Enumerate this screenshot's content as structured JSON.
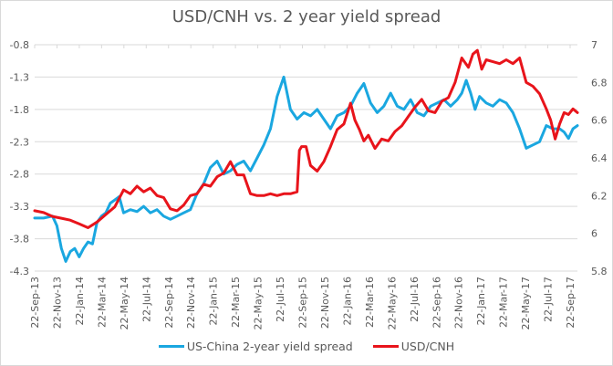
{
  "chart_data": {
    "type": "line",
    "title": "USD/CNH vs. 2 year yield spread",
    "xlabel": "",
    "ylabel": "",
    "y2label": "",
    "grid": true,
    "legend_position": "bottom",
    "x_ticks": [
      "22-Sep-13",
      "22-Nov-13",
      "22-Jan-14",
      "22-Mar-14",
      "22-May-14",
      "22-Jul-14",
      "22-Sep-14",
      "22-Nov-14",
      "22-Jan-15",
      "22-Mar-15",
      "22-May-15",
      "22-Jul-15",
      "22-Sep-15",
      "22-Nov-15",
      "22-Jan-16",
      "22-Mar-16",
      "22-May-16",
      "22-Jul-16",
      "22-Sep-16",
      "22-Nov-16",
      "22-Jan-17",
      "22-Mar-17",
      "22-May-17",
      "22-Jul-17",
      "22-Sep-17"
    ],
    "y_left": {
      "ticks": [
        "-0.8",
        "-1.3",
        "-1.8",
        "-2.3",
        "-2.8",
        "-3.3",
        "-3.8",
        "-4.3"
      ],
      "range": [
        -4.3,
        -0.8
      ]
    },
    "y_right": {
      "ticks": [
        "7",
        "6.8",
        "6.6",
        "6.4",
        "6.2",
        "6",
        "5.8"
      ],
      "range": [
        5.8,
        7.0
      ]
    },
    "x_range_months": [
      0,
      24.4
    ],
    "series": [
      {
        "name": "US-China 2-year yield spread",
        "axis": "left",
        "color": "#1AA7E0",
        "x_months": [
          0,
          0.4,
          0.8,
          1.0,
          1.2,
          1.4,
          1.6,
          1.8,
          2.0,
          2.2,
          2.4,
          2.6,
          2.8,
          3.0,
          3.2,
          3.4,
          3.6,
          3.8,
          4.0,
          4.3,
          4.6,
          4.9,
          5.2,
          5.5,
          5.8,
          6.1,
          6.4,
          6.7,
          7.0,
          7.3,
          7.6,
          7.9,
          8.2,
          8.5,
          8.8,
          9.1,
          9.4,
          9.7,
          10.0,
          10.3,
          10.6,
          10.9,
          11.2,
          11.5,
          11.8,
          12.1,
          12.4,
          12.7,
          13.0,
          13.3,
          13.6,
          13.9,
          14.2,
          14.5,
          14.8,
          15.1,
          15.4,
          15.7,
          16.0,
          16.3,
          16.6,
          16.9,
          17.2,
          17.5,
          17.8,
          18.1,
          18.4,
          18.7,
          19.0,
          19.2,
          19.4,
          19.6,
          19.8,
          20.0,
          20.3,
          20.6,
          20.9,
          21.2,
          21.5,
          21.8,
          22.1,
          22.4,
          22.7,
          23.0,
          23.3,
          23.6,
          23.8,
          24.0,
          24.2,
          24.4
        ],
        "values": [
          -3.48,
          -3.48,
          -3.45,
          -3.6,
          -3.95,
          -4.15,
          -4.0,
          -3.95,
          -4.08,
          -3.95,
          -3.85,
          -3.88,
          -3.55,
          -3.45,
          -3.4,
          -3.25,
          -3.2,
          -3.15,
          -3.4,
          -3.35,
          -3.38,
          -3.3,
          -3.4,
          -3.35,
          -3.45,
          -3.5,
          -3.45,
          -3.4,
          -3.35,
          -3.1,
          -2.95,
          -2.7,
          -2.6,
          -2.8,
          -2.75,
          -2.65,
          -2.6,
          -2.75,
          -2.55,
          -2.35,
          -2.1,
          -1.6,
          -1.3,
          -1.8,
          -1.95,
          -1.85,
          -1.9,
          -1.8,
          -1.95,
          -2.1,
          -1.9,
          -1.85,
          -1.75,
          -1.55,
          -1.4,
          -1.7,
          -1.85,
          -1.75,
          -1.55,
          -1.75,
          -1.8,
          -1.65,
          -1.85,
          -1.9,
          -1.75,
          -1.7,
          -1.65,
          -1.75,
          -1.65,
          -1.55,
          -1.35,
          -1.55,
          -1.8,
          -1.6,
          -1.7,
          -1.75,
          -1.65,
          -1.7,
          -1.85,
          -2.1,
          -2.4,
          -2.35,
          -2.3,
          -2.05,
          -2.1,
          -2.1,
          -2.15,
          -2.25,
          -2.1,
          -2.05
        ]
      },
      {
        "name": "USD/CNH",
        "axis": "right",
        "color": "#E8141B",
        "x_months": [
          0,
          0.4,
          0.8,
          1.2,
          1.6,
          2.0,
          2.4,
          2.8,
          3.2,
          3.6,
          4.0,
          4.3,
          4.6,
          4.9,
          5.2,
          5.5,
          5.8,
          6.1,
          6.4,
          6.7,
          7.0,
          7.3,
          7.6,
          7.9,
          8.2,
          8.5,
          8.8,
          9.1,
          9.4,
          9.7,
          10.0,
          10.3,
          10.6,
          10.9,
          11.2,
          11.5,
          11.8,
          11.9,
          12.0,
          12.2,
          12.4,
          12.7,
          13.0,
          13.3,
          13.6,
          13.9,
          14.2,
          14.4,
          14.6,
          14.8,
          15.0,
          15.3,
          15.6,
          15.9,
          16.2,
          16.5,
          16.8,
          17.1,
          17.4,
          17.7,
          18.0,
          18.3,
          18.6,
          18.9,
          19.2,
          19.5,
          19.7,
          19.9,
          20.1,
          20.3,
          20.6,
          20.9,
          21.2,
          21.5,
          21.8,
          22.1,
          22.4,
          22.7,
          23.0,
          23.2,
          23.4,
          23.6,
          23.8,
          24.0,
          24.2,
          24.4
        ],
        "values": [
          6.12,
          6.11,
          6.09,
          6.08,
          6.07,
          6.05,
          6.03,
          6.06,
          6.1,
          6.14,
          6.23,
          6.21,
          6.25,
          6.22,
          6.24,
          6.2,
          6.19,
          6.13,
          6.12,
          6.15,
          6.2,
          6.21,
          6.26,
          6.25,
          6.3,
          6.32,
          6.38,
          6.31,
          6.31,
          6.21,
          6.2,
          6.2,
          6.21,
          6.2,
          6.21,
          6.21,
          6.22,
          6.44,
          6.46,
          6.46,
          6.36,
          6.33,
          6.38,
          6.46,
          6.55,
          6.58,
          6.69,
          6.6,
          6.55,
          6.49,
          6.52,
          6.45,
          6.5,
          6.49,
          6.54,
          6.57,
          6.62,
          6.67,
          6.71,
          6.65,
          6.64,
          6.7,
          6.72,
          6.8,
          6.93,
          6.88,
          6.95,
          6.97,
          6.87,
          6.92,
          6.91,
          6.9,
          6.92,
          6.9,
          6.93,
          6.8,
          6.78,
          6.74,
          6.66,
          6.6,
          6.5,
          6.58,
          6.64,
          6.63,
          6.66,
          6.64
        ]
      }
    ]
  }
}
